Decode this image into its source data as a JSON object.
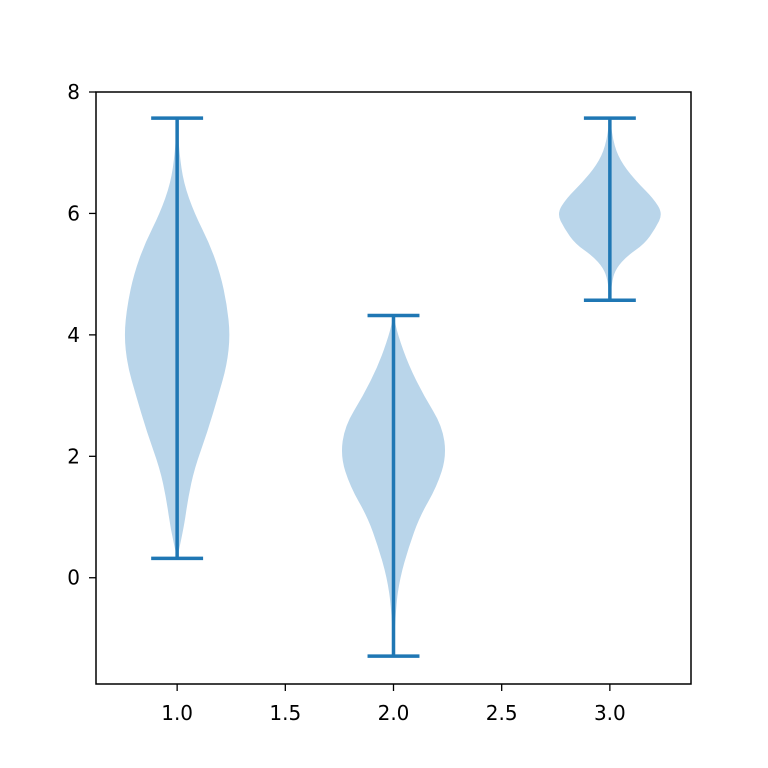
{
  "chart_data": {
    "type": "violin",
    "title": "",
    "xlabel": "",
    "ylabel": "",
    "xlim": [
      0.625,
      3.375
    ],
    "ylim": [
      -1.75,
      8.0
    ],
    "xticks": [
      1.0,
      1.5,
      2.0,
      2.5,
      3.0
    ],
    "xtick_labels": [
      "1.0",
      "1.5",
      "2.0",
      "2.5",
      "3.0"
    ],
    "yticks": [
      0,
      2,
      4,
      6,
      8
    ],
    "ytick_labels": [
      "0",
      "2",
      "4",
      "6",
      "8"
    ],
    "grid": false,
    "colors": {
      "body": "#b9d5ea",
      "lines": "#1f77b4",
      "axes": "#000000"
    },
    "violins": [
      {
        "position": 1.0,
        "min": 0.32,
        "max": 7.57,
        "profile": [
          [
            0.32,
            0.0
          ],
          [
            0.8,
            0.03
          ],
          [
            1.3,
            0.05
          ],
          [
            1.8,
            0.08
          ],
          [
            2.4,
            0.14
          ],
          [
            3.0,
            0.19
          ],
          [
            3.5,
            0.23
          ],
          [
            4.0,
            0.245
          ],
          [
            4.5,
            0.23
          ],
          [
            5.0,
            0.2
          ],
          [
            5.5,
            0.15
          ],
          [
            6.0,
            0.08
          ],
          [
            6.5,
            0.03
          ],
          [
            7.0,
            0.01
          ],
          [
            7.57,
            0.0
          ]
        ]
      },
      {
        "position": 2.0,
        "min": -1.29,
        "max": 4.32,
        "profile": [
          [
            -1.29,
            0.0
          ],
          [
            -0.5,
            0.01
          ],
          [
            0.0,
            0.03
          ],
          [
            0.5,
            0.07
          ],
          [
            1.0,
            0.12
          ],
          [
            1.5,
            0.2
          ],
          [
            2.0,
            0.245
          ],
          [
            2.5,
            0.225
          ],
          [
            3.0,
            0.14
          ],
          [
            3.5,
            0.07
          ],
          [
            4.0,
            0.02
          ],
          [
            4.32,
            0.0
          ]
        ]
      },
      {
        "position": 3.0,
        "min": 4.57,
        "max": 7.57,
        "profile": [
          [
            4.57,
            0.0
          ],
          [
            4.9,
            0.01
          ],
          [
            5.1,
            0.03
          ],
          [
            5.3,
            0.08
          ],
          [
            5.5,
            0.16
          ],
          [
            5.75,
            0.21
          ],
          [
            6.0,
            0.245
          ],
          [
            6.25,
            0.2
          ],
          [
            6.5,
            0.13
          ],
          [
            6.8,
            0.06
          ],
          [
            7.1,
            0.02
          ],
          [
            7.57,
            0.0
          ]
        ]
      }
    ]
  }
}
